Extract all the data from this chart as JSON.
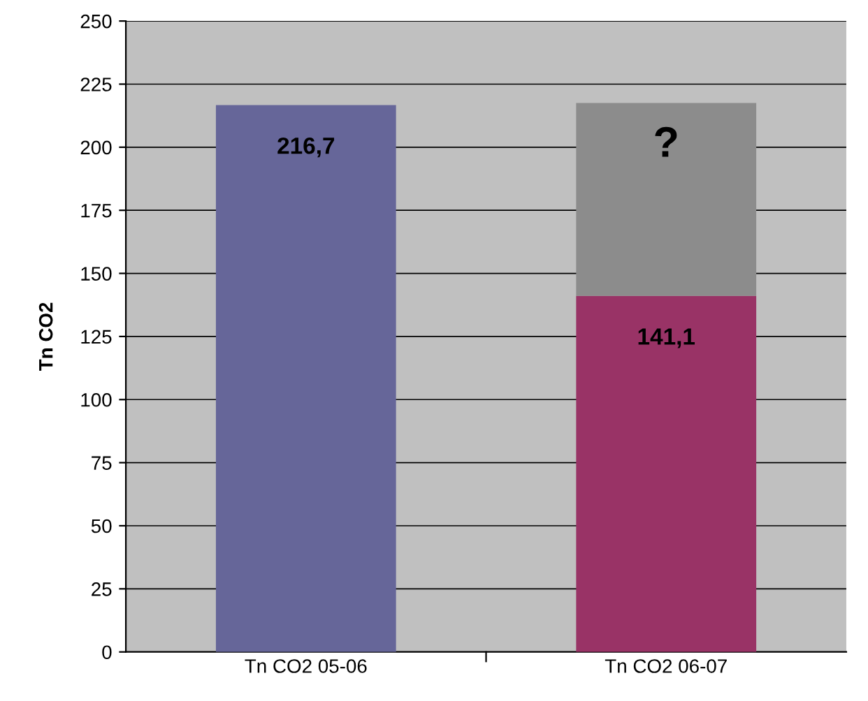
{
  "chart_data": {
    "type": "bar",
    "stacked": true,
    "ylabel": "Tn CO2",
    "categories": [
      "Tn CO2 05-06",
      "Tn CO2 06-07"
    ],
    "series": [
      {
        "colors": [
          "#666699",
          "#993366"
        ],
        "values": [
          216.7,
          141.1
        ],
        "value_labels": [
          "216,7",
          "141,1"
        ]
      },
      {
        "colors": [
          "#8c8c8c",
          "#8c8c8c"
        ],
        "values": [
          null,
          76.4
        ],
        "value_labels": [
          null,
          "?"
        ]
      }
    ],
    "ylim": [
      0,
      250
    ],
    "yticks": [
      0,
      25,
      50,
      75,
      100,
      125,
      150,
      175,
      200,
      225,
      250
    ],
    "grid": "y"
  }
}
